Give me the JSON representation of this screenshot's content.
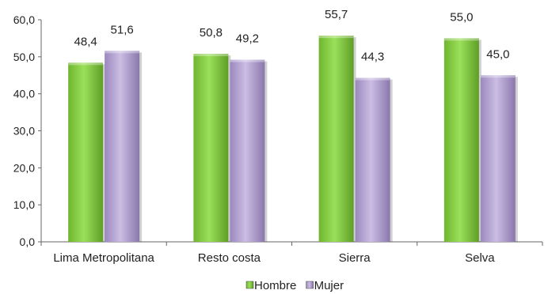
{
  "chart_data": {
    "type": "bar",
    "categories": [
      "Lima Metropolitana",
      "Resto costa",
      "Sierra",
      "Selva"
    ],
    "series": [
      {
        "name": "Hombre",
        "values": [
          48.4,
          50.8,
          55.7,
          55.0
        ],
        "labels": [
          "48,4",
          "50,8",
          "55,7",
          "55,0"
        ],
        "color": "#8fd14f"
      },
      {
        "name": "Mujer",
        "values": [
          51.6,
          49.2,
          44.3,
          45.0
        ],
        "labels": [
          "51,6",
          "49,2",
          "44,3",
          "45,0"
        ],
        "color": "#b7a6d4"
      }
    ],
    "y_ticks": [
      "0,0",
      "10,0",
      "20,0",
      "30,0",
      "40,0",
      "50,0",
      "60,0"
    ],
    "ylim": [
      0,
      60
    ],
    "title": "",
    "xlabel": "",
    "ylabel": "",
    "grid": false,
    "legend_position": "bottom"
  }
}
